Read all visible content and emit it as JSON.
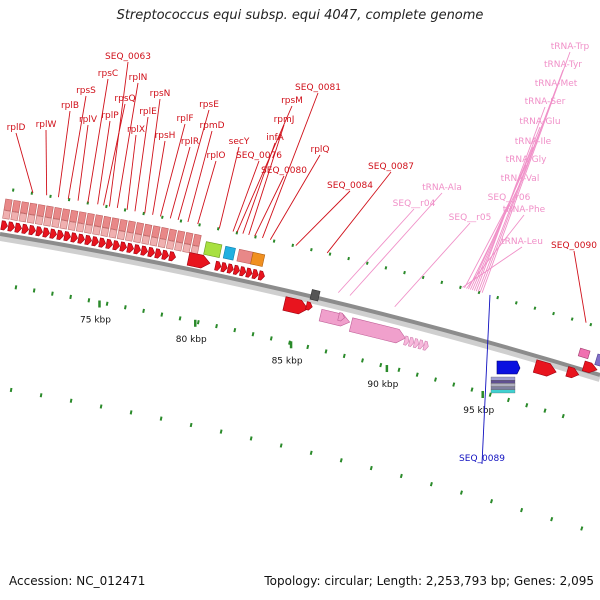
{
  "title": "Streptococcus equi subsp. equi 4047, complete genome",
  "accession_label": "Accession: NC_012471",
  "summary_label": "Topology: circular; Length: 2,253,793 bp; Genes: 2,095",
  "scale": {
    "unit": "kbp",
    "ticks": [
      {
        "label": "75 kbp",
        "kbp": 75
      },
      {
        "label": "80 kbp",
        "kbp": 80
      },
      {
        "label": "85 kbp",
        "kbp": 85
      },
      {
        "label": "90 kbp",
        "kbp": 90
      },
      {
        "label": "95 kbp",
        "kbp": 95
      }
    ]
  },
  "colors": {
    "gene_red": "#e8141e",
    "ribosomal": "#e88888",
    "rna_pink": "#f0a0cc",
    "trna_pink": "#f4a6d2",
    "label_red": "#d0101a",
    "label_pink": "#f090c8",
    "label_blue": "#1010c0",
    "backbone": "#9a9a9a",
    "tick_green": "#2a8a2a",
    "lime": "#a8e040",
    "cyan": "#20b0e0",
    "orange": "#f09020",
    "blue": "#0a10e0",
    "purple": "#8070c8"
  },
  "labels_red": [
    {
      "text": "rplD",
      "kbp": 70.6
    },
    {
      "text": "rplW",
      "kbp": 71.3
    },
    {
      "text": "rplB",
      "kbp": 71.9
    },
    {
      "text": "rpsS",
      "kbp": 72.4
    },
    {
      "text": "rplV",
      "kbp": 72.9
    },
    {
      "text": "rpsC",
      "kbp": 73.4
    },
    {
      "text": "rplP",
      "kbp": 73.9
    },
    {
      "text": "rpsQ",
      "kbp": 74.2
    },
    {
      "text": "SEQ_0063",
      "kbp": 74.5
    },
    {
      "text": "rplN",
      "kbp": 74.9
    },
    {
      "text": "rplX",
      "kbp": 75.4
    },
    {
      "text": "rplE",
      "kbp": 75.8
    },
    {
      "text": "rpsN",
      "kbp": 76.3
    },
    {
      "text": "rpsH",
      "kbp": 76.7
    },
    {
      "text": "rplF",
      "kbp": 77.1
    },
    {
      "text": "rplR",
      "kbp": 77.6
    },
    {
      "text": "rpsE",
      "kbp": 78.0
    },
    {
      "text": "rpmD",
      "kbp": 78.5
    },
    {
      "text": "rplO",
      "kbp": 79.0
    },
    {
      "text": "secY",
      "kbp": 80.1
    },
    {
      "text": "SEQ_0076",
      "kbp": 80.8
    },
    {
      "text": "rpsM",
      "kbp": 81.0
    },
    {
      "text": "infA",
      "kbp": 81.3
    },
    {
      "text": "rpmJ",
      "kbp": 81.6
    },
    {
      "text": "SEQ_0080",
      "kbp": 81.9
    },
    {
      "text": "SEQ_0081",
      "kbp": 82.3
    },
    {
      "text": "rplQ",
      "kbp": 82.7
    },
    {
      "text": "SEQ_0084",
      "kbp": 84.0
    },
    {
      "text": "SEQ_0087",
      "kbp": 85.6
    },
    {
      "text": "SEQ_0090",
      "kbp": 98.8
    }
  ],
  "labels_pink": [
    {
      "text": "tRNA-Ala",
      "kbp": 87.2
    },
    {
      "text": "SEQ__r04",
      "kbp": 86.6
    },
    {
      "text": "SEQ__r05",
      "kbp": 89.5
    },
    {
      "text": "tRNA-Trp",
      "kbp": 93.5
    },
    {
      "text": "tRNA-Tyr",
      "kbp": 93.4
    },
    {
      "text": "tRNA-Met",
      "kbp": 93.3
    },
    {
      "text": "tRNA-Ser",
      "kbp": 93.2
    },
    {
      "text": "tRNA-Glu",
      "kbp": 93.1
    },
    {
      "text": "tRNA-Ile",
      "kbp": 93.0
    },
    {
      "text": "tRNA-Gly",
      "kbp": 92.9
    },
    {
      "text": "tRNA-Val",
      "kbp": 92.8
    },
    {
      "text": "SEQ__r06",
      "kbp": 92.6
    },
    {
      "text": "tRNA-Phe",
      "kbp": 92.7
    },
    {
      "text": "tRNA-Leu",
      "kbp": 92.5
    }
  ],
  "labels_blue": [
    {
      "text": "SEQ_0089",
      "kbp": 93.9
    }
  ]
}
